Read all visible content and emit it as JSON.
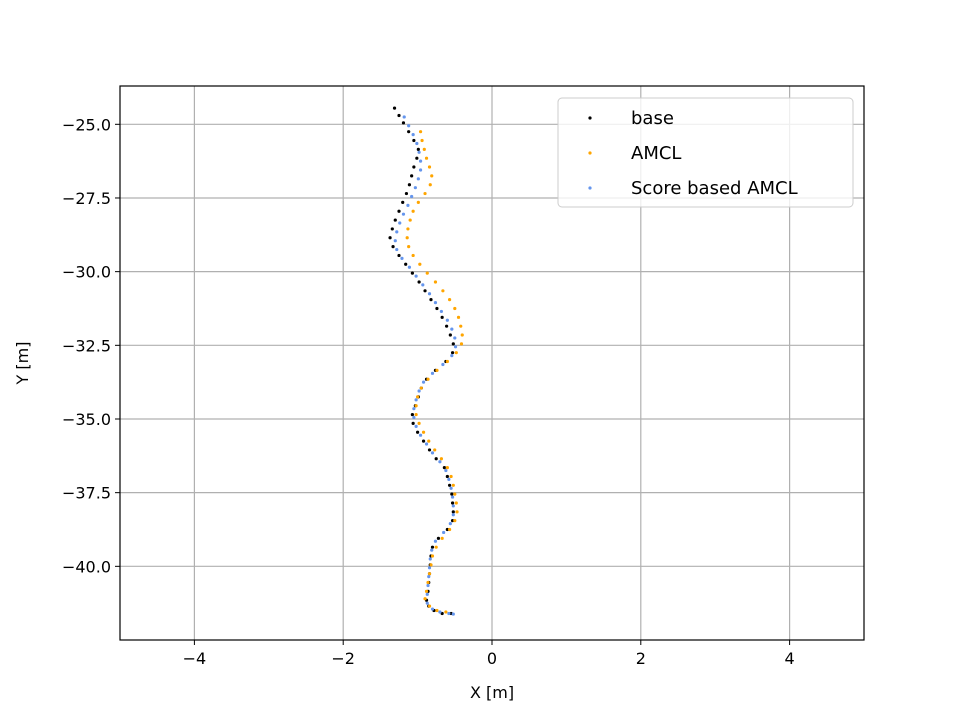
{
  "chart_data": {
    "type": "scatter",
    "title": "",
    "xlabel": "X [m]",
    "ylabel": "Y [m]",
    "xlim": [
      -5,
      5
    ],
    "ylim": [
      -42.5,
      -23.7
    ],
    "xticks": [
      -4,
      -2,
      0,
      2,
      4
    ],
    "xtick_labels": [
      "−4",
      "−2",
      "0",
      "2",
      "4"
    ],
    "yticks": [
      -25.0,
      -27.5,
      -30.0,
      -32.5,
      -35.0,
      -37.5,
      -40.0
    ],
    "ytick_labels": [
      "−25.0",
      "−27.5",
      "−30.0",
      "−32.5",
      "−35.0",
      "−37.5",
      "−40.0"
    ],
    "grid": true,
    "legend_position": "top-right",
    "series": [
      {
        "name": "base",
        "color": "#000000",
        "points": [
          [
            -1.31,
            -24.45
          ],
          [
            -1.25,
            -24.7
          ],
          [
            -1.19,
            -24.95
          ],
          [
            -1.12,
            -25.25
          ],
          [
            -1.05,
            -25.55
          ],
          [
            -0.99,
            -25.85
          ],
          [
            -1.01,
            -26.15
          ],
          [
            -1.05,
            -26.45
          ],
          [
            -1.08,
            -26.75
          ],
          [
            -1.11,
            -27.05
          ],
          [
            -1.15,
            -27.35
          ],
          [
            -1.2,
            -27.65
          ],
          [
            -1.25,
            -27.95
          ],
          [
            -1.3,
            -28.25
          ],
          [
            -1.34,
            -28.55
          ],
          [
            -1.37,
            -28.85
          ],
          [
            -1.33,
            -29.15
          ],
          [
            -1.25,
            -29.45
          ],
          [
            -1.16,
            -29.75
          ],
          [
            -1.07,
            -30.05
          ],
          [
            -0.98,
            -30.35
          ],
          [
            -0.9,
            -30.65
          ],
          [
            -0.82,
            -30.95
          ],
          [
            -0.74,
            -31.25
          ],
          [
            -0.67,
            -31.55
          ],
          [
            -0.61,
            -31.85
          ],
          [
            -0.56,
            -32.15
          ],
          [
            -0.52,
            -32.45
          ],
          [
            -0.53,
            -32.75
          ],
          [
            -0.62,
            -33.05
          ],
          [
            -0.76,
            -33.35
          ],
          [
            -0.88,
            -33.65
          ],
          [
            -0.95,
            -33.95
          ],
          [
            -0.99,
            -34.25
          ],
          [
            -1.03,
            -34.55
          ],
          [
            -1.07,
            -34.85
          ],
          [
            -1.06,
            -35.15
          ],
          [
            -1.0,
            -35.45
          ],
          [
            -0.92,
            -35.75
          ],
          [
            -0.84,
            -36.05
          ],
          [
            -0.75,
            -36.35
          ],
          [
            -0.64,
            -36.65
          ],
          [
            -0.6,
            -36.95
          ],
          [
            -0.57,
            -37.25
          ],
          [
            -0.54,
            -37.55
          ],
          [
            -0.53,
            -37.85
          ],
          [
            -0.52,
            -38.15
          ],
          [
            -0.53,
            -38.45
          ],
          [
            -0.6,
            -38.75
          ],
          [
            -0.72,
            -39.05
          ],
          [
            -0.8,
            -39.35
          ],
          [
            -0.82,
            -39.65
          ],
          [
            -0.83,
            -39.95
          ],
          [
            -0.84,
            -40.25
          ],
          [
            -0.85,
            -40.55
          ],
          [
            -0.86,
            -40.85
          ],
          [
            -0.88,
            -41.15
          ],
          [
            -0.85,
            -41.35
          ],
          [
            -0.78,
            -41.5
          ],
          [
            -0.67,
            -41.6
          ],
          [
            -0.55,
            -41.6
          ]
        ]
      },
      {
        "name": "AMCL",
        "color": "#ffa500",
        "points": [
          [
            -0.96,
            -25.25
          ],
          [
            -0.94,
            -25.55
          ],
          [
            -0.91,
            -25.85
          ],
          [
            -0.88,
            -26.15
          ],
          [
            -0.84,
            -26.45
          ],
          [
            -0.81,
            -26.75
          ],
          [
            -0.83,
            -27.05
          ],
          [
            -0.9,
            -27.35
          ],
          [
            -0.99,
            -27.65
          ],
          [
            -1.06,
            -27.95
          ],
          [
            -1.1,
            -28.25
          ],
          [
            -1.13,
            -28.55
          ],
          [
            -1.14,
            -28.85
          ],
          [
            -1.12,
            -29.15
          ],
          [
            -1.06,
            -29.45
          ],
          [
            -0.97,
            -29.75
          ],
          [
            -0.87,
            -30.05
          ],
          [
            -0.76,
            -30.35
          ],
          [
            -0.66,
            -30.65
          ],
          [
            -0.57,
            -30.95
          ],
          [
            -0.5,
            -31.25
          ],
          [
            -0.45,
            -31.55
          ],
          [
            -0.42,
            -31.85
          ],
          [
            -0.4,
            -32.15
          ],
          [
            -0.41,
            -32.45
          ],
          [
            -0.48,
            -32.75
          ],
          [
            -0.6,
            -33.05
          ],
          [
            -0.74,
            -33.35
          ],
          [
            -0.86,
            -33.65
          ],
          [
            -0.95,
            -33.95
          ],
          [
            -1.0,
            -34.25
          ],
          [
            -1.02,
            -34.55
          ],
          [
            -1.02,
            -34.85
          ],
          [
            -0.98,
            -35.15
          ],
          [
            -0.92,
            -35.45
          ],
          [
            -0.85,
            -35.75
          ],
          [
            -0.77,
            -36.05
          ],
          [
            -0.68,
            -36.35
          ],
          [
            -0.6,
            -36.65
          ],
          [
            -0.55,
            -36.95
          ],
          [
            -0.52,
            -37.25
          ],
          [
            -0.5,
            -37.55
          ],
          [
            -0.48,
            -37.85
          ],
          [
            -0.47,
            -38.15
          ],
          [
            -0.5,
            -38.45
          ],
          [
            -0.57,
            -38.75
          ],
          [
            -0.67,
            -39.05
          ],
          [
            -0.75,
            -39.35
          ],
          [
            -0.8,
            -39.65
          ],
          [
            -0.82,
            -39.95
          ],
          [
            -0.84,
            -40.25
          ],
          [
            -0.86,
            -40.55
          ],
          [
            -0.88,
            -40.85
          ],
          [
            -0.9,
            -41.1
          ],
          [
            -0.84,
            -41.35
          ],
          [
            -0.74,
            -41.5
          ],
          [
            -0.62,
            -41.55
          ]
        ]
      },
      {
        "name": "Score based AMCL",
        "color": "#6495ed",
        "points": [
          [
            -1.18,
            -24.75
          ],
          [
            -1.12,
            -25.05
          ],
          [
            -1.06,
            -25.35
          ],
          [
            -1.01,
            -25.65
          ],
          [
            -0.98,
            -25.95
          ],
          [
            -0.96,
            -26.25
          ],
          [
            -0.96,
            -26.55
          ],
          [
            -0.99,
            -26.85
          ],
          [
            -1.03,
            -27.15
          ],
          [
            -1.08,
            -27.45
          ],
          [
            -1.13,
            -27.75
          ],
          [
            -1.19,
            -28.05
          ],
          [
            -1.24,
            -28.35
          ],
          [
            -1.28,
            -28.65
          ],
          [
            -1.3,
            -28.95
          ],
          [
            -1.28,
            -29.25
          ],
          [
            -1.21,
            -29.55
          ],
          [
            -1.11,
            -29.85
          ],
          [
            -1.02,
            -30.15
          ],
          [
            -0.93,
            -30.45
          ],
          [
            -0.84,
            -30.75
          ],
          [
            -0.76,
            -31.05
          ],
          [
            -0.68,
            -31.35
          ],
          [
            -0.6,
            -31.65
          ],
          [
            -0.54,
            -31.95
          ],
          [
            -0.5,
            -32.25
          ],
          [
            -0.49,
            -32.55
          ],
          [
            -0.54,
            -32.85
          ],
          [
            -0.66,
            -33.15
          ],
          [
            -0.8,
            -33.45
          ],
          [
            -0.92,
            -33.75
          ],
          [
            -0.98,
            -34.05
          ],
          [
            -1.02,
            -34.35
          ],
          [
            -1.05,
            -34.65
          ],
          [
            -1.05,
            -34.95
          ],
          [
            -1.02,
            -35.25
          ],
          [
            -0.96,
            -35.55
          ],
          [
            -0.88,
            -35.85
          ],
          [
            -0.8,
            -36.15
          ],
          [
            -0.7,
            -36.45
          ],
          [
            -0.62,
            -36.75
          ],
          [
            -0.58,
            -37.05
          ],
          [
            -0.55,
            -37.35
          ],
          [
            -0.53,
            -37.65
          ],
          [
            -0.52,
            -37.95
          ],
          [
            -0.52,
            -38.25
          ],
          [
            -0.56,
            -38.55
          ],
          [
            -0.65,
            -38.85
          ],
          [
            -0.76,
            -39.15
          ],
          [
            -0.81,
            -39.45
          ],
          [
            -0.83,
            -39.75
          ],
          [
            -0.84,
            -40.05
          ],
          [
            -0.85,
            -40.35
          ],
          [
            -0.86,
            -40.65
          ],
          [
            -0.87,
            -40.95
          ],
          [
            -0.87,
            -41.25
          ],
          [
            -0.8,
            -41.45
          ],
          [
            -0.7,
            -41.55
          ],
          [
            -0.58,
            -41.6
          ],
          [
            -0.52,
            -41.62
          ]
        ]
      }
    ]
  }
}
